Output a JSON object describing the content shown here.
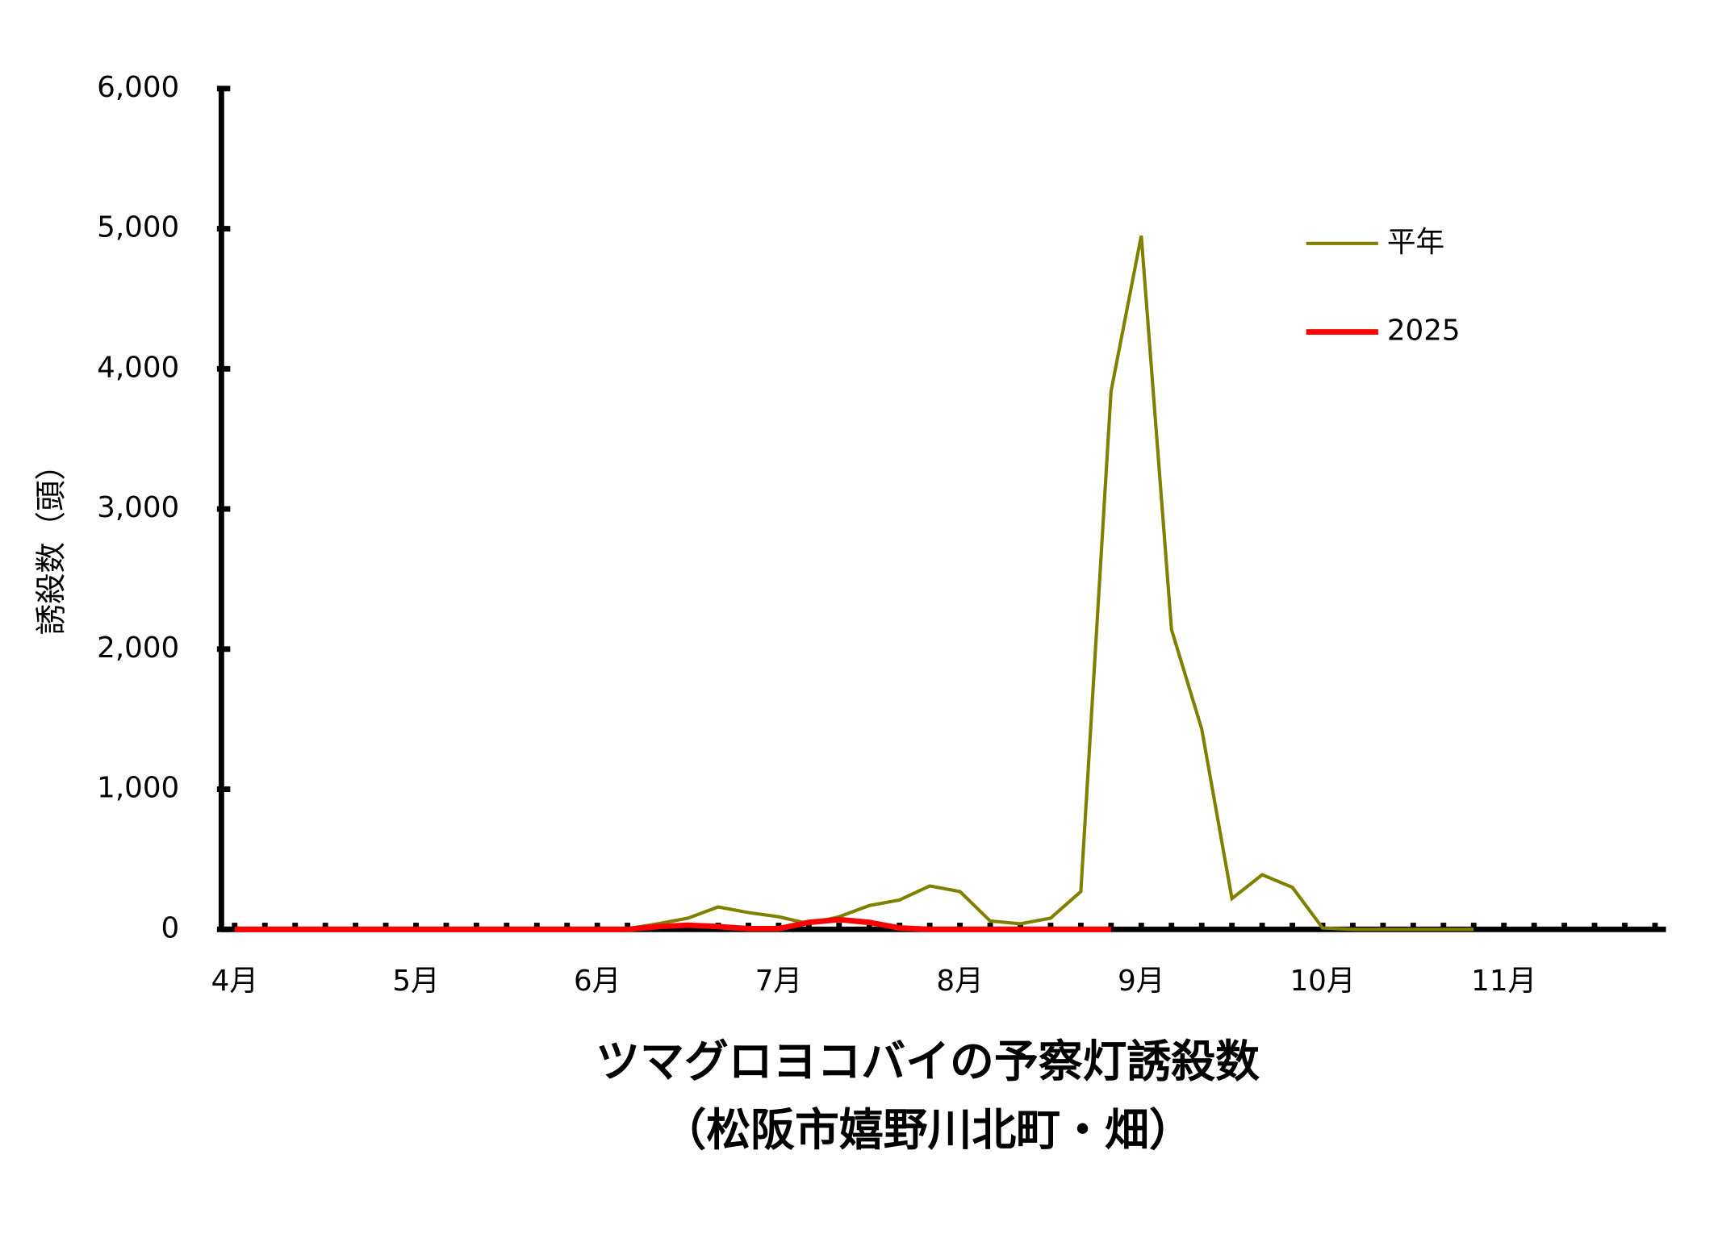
{
  "chart_data": {
    "type": "line",
    "title": "ツマグロヨコバイの予察灯誘殺数",
    "subtitle": "（松阪市嬉野川北町・畑）",
    "y_label": "誘殺数（頭）",
    "categories": [
      "4月",
      null,
      null,
      null,
      null,
      null,
      "5月",
      null,
      null,
      null,
      null,
      null,
      "6月",
      null,
      null,
      null,
      null,
      null,
      "7月",
      null,
      null,
      null,
      null,
      null,
      "8月",
      null,
      null,
      null,
      null,
      null,
      "9月",
      null,
      null,
      null,
      null,
      null,
      "10月",
      null,
      null,
      null,
      null,
      null,
      "11月",
      null,
      null,
      null,
      null,
      null
    ],
    "series": [
      {
        "name": "平年",
        "color": "#808000",
        "values": [
          0,
          0,
          0,
          0,
          0,
          0,
          0,
          0,
          0,
          0,
          0,
          0,
          0,
          5,
          40,
          80,
          160,
          120,
          90,
          40,
          90,
          170,
          210,
          310,
          270,
          60,
          40,
          80,
          270,
          3840,
          4950,
          2140,
          1430,
          220,
          390,
          300,
          10,
          0,
          0,
          0,
          0,
          0,
          null,
          null,
          null,
          null,
          null,
          null
        ]
      },
      {
        "name": "2025",
        "color": "#ff0000",
        "values": [
          0,
          0,
          0,
          0,
          0,
          0,
          0,
          0,
          0,
          0,
          0,
          0,
          0,
          0,
          20,
          30,
          20,
          5,
          5,
          50,
          70,
          50,
          10,
          0,
          0,
          0,
          0,
          0,
          0,
          0,
          null,
          null,
          null,
          null,
          null,
          null,
          null,
          null,
          null,
          null,
          null,
          null,
          null,
          null,
          null,
          null,
          null,
          null
        ]
      }
    ],
    "ylim": [
      0,
      6000
    ],
    "yticks": [
      0,
      {
        "value": 1000,
        "label": "1,000"
      },
      {
        "value": 2000,
        "label": "2,000"
      },
      {
        "value": 3000,
        "label": "3,000"
      },
      {
        "value": 4000,
        "label": "4,000"
      },
      {
        "value": 5000,
        "label": "5,000"
      },
      {
        "value": 6000,
        "label": "6,000"
      }
    ],
    "legend": "upper right"
  }
}
